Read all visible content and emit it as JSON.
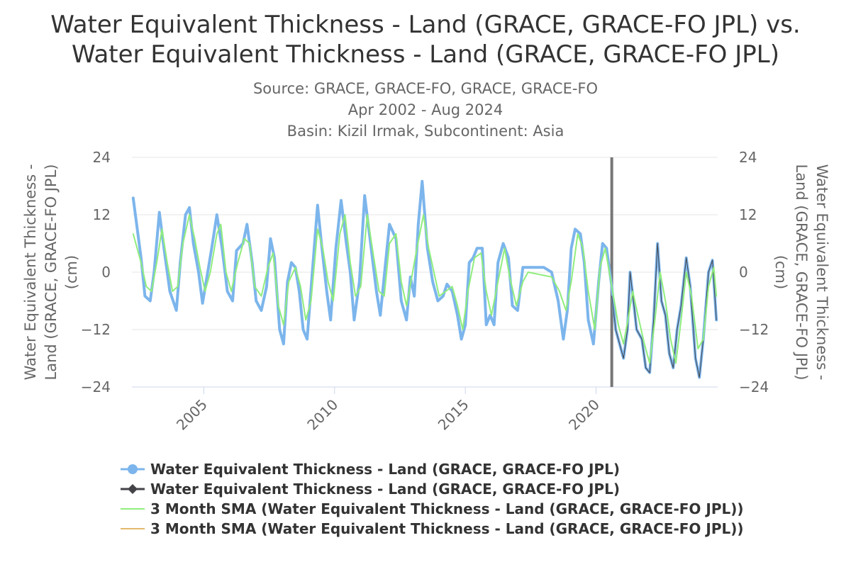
{
  "title": {
    "line1": "Water Equivalent Thickness - Land (GRACE, GRACE-FO JPL) vs.",
    "line2": "Water Equivalent Thickness - Land (GRACE, GRACE-FO JPL)"
  },
  "subtitle": {
    "source": "Source: GRACE, GRACE-FO, GRACE, GRACE-FO",
    "period": "Apr 2002 - Aug 2024",
    "basin": "Basin: Kizil Irmak, Subcontinent: Asia"
  },
  "colors": {
    "series_blue": "#7cb5ec",
    "series_dark": "#434348",
    "sma_green": "#90ed7d",
    "sma_orange": "#e4b96c",
    "grid": "#e6e6e6",
    "plotline": "#777777"
  },
  "chart_data": {
    "type": "line",
    "title": "Water Equivalent Thickness - Land (GRACE, GRACE-FO JPL) vs. Water Equivalent Thickness - Land (GRACE, GRACE-FO JPL)",
    "xlabel": "",
    "ylabel_left": "Water Equivalent Thickness - Land (GRACE, GRACE-FO JPL) (cm)",
    "ylabel_right": "Water Equivalent Thickness - Land (GRACE, GRACE-FO JPL) (cm)",
    "xlim": [
      2002.25,
      2024.65
    ],
    "ylim": [
      -24,
      24
    ],
    "x_ticks": [
      2005,
      2010,
      2015,
      2020
    ],
    "y_ticks": [
      -24,
      -12,
      0,
      12,
      24
    ],
    "vertical_marker_x": 2020.6,
    "grid": true,
    "legend_position": "bottom",
    "series": [
      {
        "name": "Water Equivalent Thickness - Land (GRACE, GRACE-FO JPL)",
        "points": [
          [
            2002.3,
            15.5
          ],
          [
            2002.6,
            3
          ],
          [
            2002.75,
            -5
          ],
          [
            2002.95,
            -6
          ],
          [
            2003.1,
            0
          ],
          [
            2003.3,
            12.5
          ],
          [
            2003.5,
            4
          ],
          [
            2003.7,
            -4
          ],
          [
            2003.95,
            -8
          ],
          [
            2004.1,
            2
          ],
          [
            2004.3,
            12
          ],
          [
            2004.45,
            13.5
          ],
          [
            2004.6,
            6
          ],
          [
            2004.8,
            0
          ],
          [
            2004.95,
            -6.5
          ],
          [
            2005.15,
            0
          ],
          [
            2005.3,
            5
          ],
          [
            2005.5,
            12
          ],
          [
            2005.7,
            5
          ],
          [
            2005.9,
            -4
          ],
          [
            2006.1,
            -6
          ],
          [
            2006.25,
            4.5
          ],
          [
            2006.5,
            6
          ],
          [
            2006.65,
            10
          ],
          [
            2006.85,
            2
          ],
          [
            2007.0,
            -6
          ],
          [
            2007.2,
            -8
          ],
          [
            2007.4,
            -3
          ],
          [
            2007.55,
            7
          ],
          [
            2007.7,
            3
          ],
          [
            2007.9,
            -12
          ],
          [
            2008.05,
            -15
          ],
          [
            2008.2,
            -2
          ],
          [
            2008.35,
            2
          ],
          [
            2008.5,
            1
          ],
          [
            2008.65,
            -4
          ],
          [
            2008.8,
            -12
          ],
          [
            2008.95,
            -14
          ],
          [
            2009.15,
            0
          ],
          [
            2009.35,
            14
          ],
          [
            2009.5,
            6
          ],
          [
            2009.7,
            -4
          ],
          [
            2009.85,
            -10
          ],
          [
            2010.05,
            5
          ],
          [
            2010.25,
            15
          ],
          [
            2010.45,
            6
          ],
          [
            2010.6,
            0
          ],
          [
            2010.75,
            -10
          ],
          [
            2010.95,
            -2
          ],
          [
            2011.15,
            16
          ],
          [
            2011.4,
            5
          ],
          [
            2011.6,
            -4
          ],
          [
            2011.75,
            -9
          ],
          [
            2011.95,
            2
          ],
          [
            2012.1,
            10
          ],
          [
            2012.35,
            7
          ],
          [
            2012.55,
            -6
          ],
          [
            2012.75,
            -10
          ],
          [
            2012.9,
            -1
          ],
          [
            2013.05,
            -5
          ],
          [
            2013.2,
            10
          ],
          [
            2013.35,
            19
          ],
          [
            2013.55,
            5
          ],
          [
            2013.75,
            -2
          ],
          [
            2013.95,
            -6
          ],
          [
            2014.15,
            -5
          ],
          [
            2014.3,
            -2.5
          ],
          [
            2014.5,
            -4
          ],
          [
            2014.7,
            -9
          ],
          [
            2014.85,
            -14
          ],
          [
            2015.0,
            -11
          ],
          [
            2015.15,
            2
          ],
          [
            2015.3,
            3
          ],
          [
            2015.45,
            5
          ],
          [
            2015.65,
            5
          ],
          [
            2015.8,
            -11
          ],
          [
            2015.95,
            -9
          ],
          [
            2016.1,
            -11
          ],
          [
            2016.25,
            2
          ],
          [
            2016.45,
            6
          ],
          [
            2016.65,
            3
          ],
          [
            2016.8,
            -7
          ],
          [
            2017.0,
            -8
          ],
          [
            2017.2,
            1
          ],
          [
            2017.4,
            1
          ],
          [
            2018.0,
            1
          ],
          [
            2018.3,
            0
          ],
          [
            2018.55,
            -6
          ],
          [
            2018.75,
            -14
          ],
          [
            2018.9,
            -8
          ],
          [
            2019.05,
            5
          ],
          [
            2019.2,
            9
          ],
          [
            2019.4,
            8
          ],
          [
            2019.55,
            2
          ],
          [
            2019.7,
            -10
          ],
          [
            2019.9,
            -15
          ],
          [
            2020.1,
            -2
          ],
          [
            2020.25,
            6
          ],
          [
            2020.4,
            5
          ],
          [
            2020.6,
            -3
          ],
          [
            2020.75,
            -12
          ],
          [
            2020.9,
            -15
          ],
          [
            2021.05,
            -18
          ],
          [
            2021.2,
            -12
          ],
          [
            2021.3,
            0
          ],
          [
            2021.45,
            -7
          ],
          [
            2021.55,
            -12
          ],
          [
            2021.75,
            -14
          ],
          [
            2021.9,
            -20
          ],
          [
            2022.05,
            -21
          ],
          [
            2022.2,
            -10
          ],
          [
            2022.35,
            6
          ],
          [
            2022.5,
            -6
          ],
          [
            2022.65,
            -9
          ],
          [
            2022.8,
            -17
          ],
          [
            2022.95,
            -20
          ],
          [
            2023.1,
            -12
          ],
          [
            2023.25,
            -7
          ],
          [
            2023.45,
            3
          ],
          [
            2023.6,
            -3
          ],
          [
            2023.8,
            -18
          ],
          [
            2023.95,
            -22
          ],
          [
            2024.1,
            -14
          ],
          [
            2024.3,
            0
          ],
          [
            2024.45,
            2.5
          ],
          [
            2024.6,
            -10
          ]
        ]
      },
      {
        "name": "Water Equivalent Thickness - Land (GRACE, GRACE-FO JPL)",
        "points": [
          [
            2020.6,
            -5
          ],
          [
            2020.75,
            -12
          ],
          [
            2020.9,
            -15
          ],
          [
            2021.05,
            -18
          ],
          [
            2021.2,
            -12
          ],
          [
            2021.3,
            0
          ],
          [
            2021.45,
            -7
          ],
          [
            2021.55,
            -12
          ],
          [
            2021.75,
            -14
          ],
          [
            2021.9,
            -20
          ],
          [
            2022.05,
            -21
          ],
          [
            2022.2,
            -10
          ],
          [
            2022.35,
            6
          ],
          [
            2022.5,
            -6
          ],
          [
            2022.65,
            -9
          ],
          [
            2022.8,
            -17
          ],
          [
            2022.95,
            -20
          ],
          [
            2023.1,
            -12
          ],
          [
            2023.25,
            -7
          ],
          [
            2023.45,
            3
          ],
          [
            2023.6,
            -3
          ],
          [
            2023.8,
            -18
          ],
          [
            2023.95,
            -22
          ],
          [
            2024.1,
            -14
          ],
          [
            2024.3,
            0
          ],
          [
            2024.45,
            2.5
          ],
          [
            2024.6,
            -10
          ]
        ]
      },
      {
        "name": "3 Month SMA (Water Equivalent Thickness - Land (GRACE, GRACE-FO JPL))",
        "points": [
          [
            2002.3,
            8
          ],
          [
            2002.6,
            2
          ],
          [
            2002.8,
            -3
          ],
          [
            2003.0,
            -4
          ],
          [
            2003.2,
            2
          ],
          [
            2003.4,
            9
          ],
          [
            2003.6,
            2
          ],
          [
            2003.8,
            -4
          ],
          [
            2004.0,
            -3
          ],
          [
            2004.2,
            6
          ],
          [
            2004.45,
            12
          ],
          [
            2004.65,
            7
          ],
          [
            2004.85,
            1
          ],
          [
            2005.05,
            -4
          ],
          [
            2005.25,
            0
          ],
          [
            2005.5,
            8
          ],
          [
            2005.65,
            10
          ],
          [
            2005.85,
            0
          ],
          [
            2006.05,
            -4
          ],
          [
            2006.3,
            2
          ],
          [
            2006.55,
            7
          ],
          [
            2006.75,
            6
          ],
          [
            2006.95,
            -3
          ],
          [
            2007.2,
            -5
          ],
          [
            2007.45,
            1
          ],
          [
            2007.65,
            4
          ],
          [
            2007.85,
            -7
          ],
          [
            2008.05,
            -11
          ],
          [
            2008.25,
            -2
          ],
          [
            2008.5,
            1
          ],
          [
            2008.7,
            -3
          ],
          [
            2008.9,
            -10
          ],
          [
            2009.1,
            -6
          ],
          [
            2009.35,
            9
          ],
          [
            2009.55,
            5
          ],
          [
            2009.75,
            -2
          ],
          [
            2009.95,
            -6
          ],
          [
            2010.2,
            8
          ],
          [
            2010.4,
            12
          ],
          [
            2010.6,
            2
          ],
          [
            2010.8,
            -5
          ],
          [
            2011.0,
            -3
          ],
          [
            2011.25,
            12
          ],
          [
            2011.5,
            3
          ],
          [
            2011.7,
            -4
          ],
          [
            2011.9,
            -5
          ],
          [
            2012.1,
            6
          ],
          [
            2012.35,
            8
          ],
          [
            2012.55,
            -2
          ],
          [
            2012.75,
            -7
          ],
          [
            2012.95,
            -1
          ],
          [
            2013.15,
            5
          ],
          [
            2013.4,
            12
          ],
          [
            2013.6,
            5
          ],
          [
            2013.8,
            0
          ],
          [
            2014.0,
            -5
          ],
          [
            2014.25,
            -4
          ],
          [
            2014.5,
            -3
          ],
          [
            2014.7,
            -7
          ],
          [
            2014.9,
            -12
          ],
          [
            2015.1,
            -4
          ],
          [
            2015.35,
            3
          ],
          [
            2015.6,
            4
          ],
          [
            2015.8,
            -4
          ],
          [
            2016.0,
            -9
          ],
          [
            2016.25,
            -2
          ],
          [
            2016.5,
            5
          ],
          [
            2016.7,
            -1
          ],
          [
            2016.95,
            -7
          ],
          [
            2017.2,
            -2
          ],
          [
            2017.4,
            0
          ],
          [
            2018.3,
            -1
          ],
          [
            2018.6,
            -4
          ],
          [
            2018.85,
            -8
          ],
          [
            2019.05,
            -2
          ],
          [
            2019.3,
            8
          ],
          [
            2019.5,
            5
          ],
          [
            2019.7,
            -4
          ],
          [
            2019.95,
            -12
          ],
          [
            2020.15,
            1
          ],
          [
            2020.35,
            5
          ],
          [
            2020.6,
            -3
          ],
          [
            2020.85,
            -11
          ],
          [
            2021.05,
            -15
          ],
          [
            2021.25,
            -9
          ],
          [
            2021.4,
            -4
          ],
          [
            2021.6,
            -9
          ],
          [
            2021.85,
            -15
          ],
          [
            2022.05,
            -19
          ],
          [
            2022.25,
            -10
          ],
          [
            2022.45,
            0
          ],
          [
            2022.65,
            -6
          ],
          [
            2022.85,
            -14
          ],
          [
            2023.05,
            -19
          ],
          [
            2023.25,
            -10
          ],
          [
            2023.45,
            0
          ],
          [
            2023.65,
            -5
          ],
          [
            2023.9,
            -16
          ],
          [
            2024.1,
            -14
          ],
          [
            2024.3,
            -3
          ],
          [
            2024.5,
            1
          ],
          [
            2024.6,
            -5
          ]
        ]
      },
      {
        "name": "3 Month SMA (Water Equivalent Thickness - Land (GRACE, GRACE-FO JPL))",
        "points": []
      }
    ]
  },
  "axis": {
    "y_left_title": "Water Equivalent Thickness - Land (GRACE, GRACE-FO JPL) (cm)",
    "y_right_title": "Water Equivalent Thickness - Land (GRACE, GRACE-FO JPL) (cm)"
  },
  "legend": {
    "items": [
      {
        "label": "Water Equivalent Thickness - Land (GRACE, GRACE-FO JPL)",
        "symbol": "circle-line",
        "color": "#7cb5ec"
      },
      {
        "label": "Water Equivalent Thickness - Land (GRACE, GRACE-FO JPL)",
        "symbol": "diamond-line",
        "color": "#434348"
      },
      {
        "label": "3 Month SMA (Water Equivalent Thickness - Land (GRACE, GRACE-FO JPL))",
        "symbol": "line",
        "color": "#90ed7d"
      },
      {
        "label": "3 Month SMA (Water Equivalent Thickness - Land (GRACE, GRACE-FO JPL))",
        "symbol": "line",
        "color": "#e4b96c"
      }
    ]
  }
}
